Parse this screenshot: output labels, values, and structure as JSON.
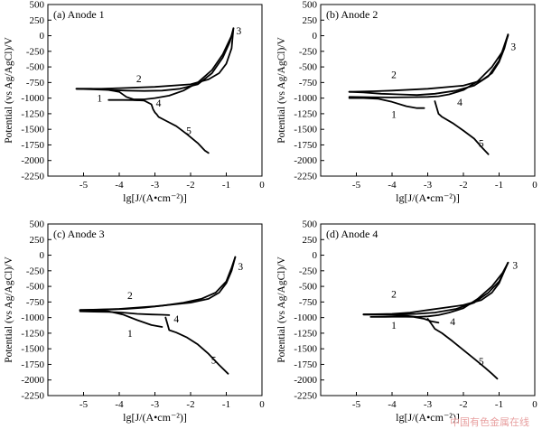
{
  "watermark": "中国有色金属在线",
  "chart_data": [
    {
      "type": "line",
      "title": "(a) Anode 1",
      "xlabel": "lg[J/(A•cm⁻²)]",
      "ylabel": "Potential (vs Ag/AgCl)/V",
      "xlim": [
        -6,
        0
      ],
      "ylim": [
        -2250,
        500
      ],
      "xticks": [
        -5,
        -4,
        -3,
        -2,
        -1,
        0
      ],
      "yticks": [
        500,
        250,
        0,
        -250,
        -500,
        -750,
        -1000,
        -1250,
        -1500,
        -1750,
        -2000,
        -2250
      ],
      "grid": false,
      "series": [
        {
          "name": "1",
          "x": [
            -4.3,
            -3.9,
            -3.6,
            -3.4
          ],
          "y": [
            -1030,
            -1030,
            -1032,
            -1035
          ]
        },
        {
          "name": "2",
          "x": [
            -5.2,
            -4.5,
            -4.0,
            -3.0,
            -2.0,
            -1.5,
            -1.2,
            -1.0,
            -0.85,
            -0.8
          ],
          "y": [
            -850,
            -850,
            -840,
            -820,
            -780,
            -700,
            -600,
            -450,
            -200,
            120
          ]
        },
        {
          "name": "3",
          "x": [
            -0.8,
            -0.9,
            -1.1,
            -1.4,
            -1.8,
            -2.3,
            -2.8,
            -3.3,
            -3.8,
            -4.2,
            -4.7,
            -5.2
          ],
          "y": [
            120,
            -100,
            -350,
            -600,
            -780,
            -850,
            -880,
            -885,
            -880,
            -870,
            -860,
            -850
          ]
        },
        {
          "name": "4",
          "x": [
            -5.2,
            -4.8,
            -4.4,
            -4.0,
            -3.8,
            -3.6,
            -3.3,
            -3.0,
            -2.6,
            -2.2,
            -1.8,
            -1.4,
            -1.1,
            -0.85
          ],
          "y": [
            -850,
            -850,
            -860,
            -900,
            -980,
            -1020,
            -1020,
            -1000,
            -960,
            -880,
            -750,
            -550,
            -300,
            0
          ]
        },
        {
          "name": "5",
          "x": [
            -3.6,
            -3.3,
            -3.1,
            -3.05,
            -3.0,
            -2.95,
            -2.9,
            -2.7,
            -2.4,
            -2.1,
            -1.8,
            -1.6,
            -1.5
          ],
          "y": [
            -1030,
            -1040,
            -1100,
            -1180,
            -1230,
            -1260,
            -1300,
            -1360,
            -1450,
            -1580,
            -1720,
            -1840,
            -1880
          ]
        }
      ],
      "curve_labels": [
        {
          "text": "1",
          "x": -4.55,
          "y": -1000
        },
        {
          "text": "2",
          "x": -3.45,
          "y": -690
        },
        {
          "text": "3",
          "x": -0.65,
          "y": 80
        },
        {
          "text": "4",
          "x": -2.9,
          "y": -1080
        },
        {
          "text": "5",
          "x": -2.05,
          "y": -1520
        }
      ]
    },
    {
      "type": "line",
      "title": "(b) Anode 2",
      "xlabel": "lg[J/(A•cm⁻²)]",
      "ylabel": "Potential (vs Ag/AgCl)/V",
      "xlim": [
        -6,
        0
      ],
      "ylim": [
        -2250,
        500
      ],
      "xticks": [
        -5,
        -4,
        -3,
        -2,
        -1,
        0
      ],
      "yticks": [
        500,
        250,
        0,
        -250,
        -500,
        -750,
        -1000,
        -1250,
        -1500,
        -1750,
        -2000,
        -2250
      ],
      "grid": false,
      "series": [
        {
          "name": "1",
          "x": [
            -5.2,
            -4.8,
            -4.4,
            -4.0,
            -3.6,
            -3.3,
            -3.1
          ],
          "y": [
            -1000,
            -1000,
            -1010,
            -1060,
            -1130,
            -1160,
            -1160
          ]
        },
        {
          "name": "2",
          "x": [
            -5.2,
            -4.5,
            -4.0,
            -3.0,
            -2.0,
            -1.5,
            -1.2,
            -1.0,
            -0.85,
            -0.75
          ],
          "y": [
            -900,
            -890,
            -880,
            -850,
            -800,
            -720,
            -600,
            -420,
            -200,
            20
          ]
        },
        {
          "name": "3",
          "x": [
            -0.75,
            -0.85,
            -1.0,
            -1.3,
            -1.7,
            -2.2,
            -2.8,
            -3.3,
            -3.8,
            -4.3,
            -4.8,
            -5.2
          ],
          "y": [
            20,
            -150,
            -400,
            -650,
            -800,
            -880,
            -930,
            -950,
            -940,
            -930,
            -910,
            -900
          ]
        },
        {
          "name": "4",
          "x": [
            -5.2,
            -4.6,
            -4.0,
            -3.5,
            -3.0,
            -2.7,
            -2.4,
            -2.0,
            -1.6,
            -1.2,
            -0.9,
            -0.75
          ],
          "y": [
            -980,
            -985,
            -990,
            -985,
            -980,
            -970,
            -940,
            -870,
            -730,
            -500,
            -250,
            0
          ]
        },
        {
          "name": "5",
          "x": [
            -2.8,
            -2.75,
            -2.7,
            -2.6,
            -2.3,
            -2.0,
            -1.7,
            -1.5,
            -1.3
          ],
          "y": [
            -1050,
            -1150,
            -1250,
            -1300,
            -1400,
            -1520,
            -1650,
            -1780,
            -1900
          ]
        }
      ],
      "curve_labels": [
        {
          "text": "1",
          "x": -3.95,
          "y": -1260
        },
        {
          "text": "2",
          "x": -3.95,
          "y": -620
        },
        {
          "text": "3",
          "x": -0.6,
          "y": -170
        },
        {
          "text": "4",
          "x": -2.1,
          "y": -1060
        },
        {
          "text": "5",
          "x": -1.5,
          "y": -1720
        }
      ]
    },
    {
      "type": "line",
      "title": "(c) Anode 3",
      "xlabel": "lg[J/(A•cm⁻²)]",
      "ylabel": "Potential (vs Ag/AgCl)/V",
      "xlim": [
        -6,
        0
      ],
      "ylim": [
        -2250,
        500
      ],
      "xticks": [
        -5,
        -4,
        -3,
        -2,
        -1,
        0
      ],
      "yticks": [
        500,
        250,
        0,
        -250,
        -500,
        -750,
        -1000,
        -1250,
        -1500,
        -1750,
        -2000,
        -2250
      ],
      "grid": false,
      "series": [
        {
          "name": "1",
          "x": [
            -5.1,
            -4.7,
            -4.3,
            -3.9,
            -3.5,
            -3.1,
            -2.8
          ],
          "y": [
            -880,
            -885,
            -900,
            -950,
            -1040,
            -1120,
            -1150
          ]
        },
        {
          "name": "2",
          "x": [
            -5.1,
            -4.5,
            -4.0,
            -3.0,
            -2.0,
            -1.5,
            -1.2,
            -1.0,
            -0.85,
            -0.75
          ],
          "y": [
            -880,
            -870,
            -860,
            -820,
            -760,
            -700,
            -600,
            -450,
            -250,
            -30
          ]
        },
        {
          "name": "3",
          "x": [
            -0.75,
            -0.85,
            -1.0,
            -1.3,
            -1.7,
            -2.2,
            -2.8,
            -3.3,
            -3.8,
            -4.3,
            -4.8,
            -5.1
          ],
          "y": [
            -30,
            -200,
            -420,
            -600,
            -700,
            -760,
            -810,
            -840,
            -860,
            -870,
            -875,
            -880
          ]
        },
        {
          "name": "4",
          "x": [
            -5.1,
            -4.7,
            -4.3,
            -3.9,
            -3.5,
            -3.1,
            -2.8,
            -2.6
          ],
          "y": [
            -900,
            -905,
            -910,
            -920,
            -940,
            -950,
            -955,
            -960
          ]
        },
        {
          "name": "5",
          "x": [
            -2.7,
            -2.65,
            -2.6,
            -2.4,
            -2.1,
            -1.8,
            -1.5,
            -1.2,
            -0.95
          ],
          "y": [
            -1000,
            -1100,
            -1200,
            -1240,
            -1320,
            -1430,
            -1580,
            -1760,
            -1900
          ]
        }
      ],
      "curve_labels": [
        {
          "text": "1",
          "x": -3.7,
          "y": -1250
        },
        {
          "text": "2",
          "x": -3.7,
          "y": -640
        },
        {
          "text": "3",
          "x": -0.6,
          "y": -180
        },
        {
          "text": "4",
          "x": -2.4,
          "y": -1020
        },
        {
          "text": "5",
          "x": -1.35,
          "y": -1680
        }
      ]
    },
    {
      "type": "line",
      "title": "(d) Anode 4",
      "xlabel": "lg[J/(A•cm⁻²)]",
      "ylabel": "Potential (vs Ag/AgCl)/V",
      "xlim": [
        -6,
        0
      ],
      "ylim": [
        -2250,
        500
      ],
      "xticks": [
        -5,
        -4,
        -3,
        -2,
        -1,
        0
      ],
      "yticks": [
        500,
        250,
        0,
        -250,
        -500,
        -750,
        -1000,
        -1250,
        -1500,
        -1750,
        -2000,
        -2250
      ],
      "grid": false,
      "series": [
        {
          "name": "1",
          "x": [
            -4.6,
            -4.2,
            -3.8,
            -3.4,
            -3.1,
            -2.9,
            -2.7
          ],
          "y": [
            -990,
            -990,
            -985,
            -990,
            -1020,
            -1060,
            -1080
          ]
        },
        {
          "name": "2",
          "x": [
            -4.8,
            -4.3,
            -4.0,
            -3.5,
            -3.0,
            -2.0,
            -1.5,
            -1.2,
            -1.0,
            -0.85,
            -0.75
          ],
          "y": [
            -950,
            -945,
            -940,
            -920,
            -880,
            -800,
            -720,
            -600,
            -450,
            -250,
            -120
          ]
        },
        {
          "name": "3",
          "x": [
            -0.75,
            -0.85,
            -1.0,
            -1.3,
            -1.7,
            -2.2,
            -2.8,
            -3.3,
            -3.8,
            -4.3,
            -4.8
          ],
          "y": [
            -120,
            -250,
            -420,
            -600,
            -760,
            -860,
            -920,
            -940,
            -950,
            -950,
            -950
          ]
        },
        {
          "name": "4",
          "x": [
            -4.8,
            -4.4,
            -4.0,
            -3.6,
            -3.3,
            -3.0,
            -2.7,
            -2.4,
            -2.0,
            -1.6,
            -1.2,
            -0.9,
            -0.75
          ],
          "y": [
            -950,
            -955,
            -960,
            -970,
            -990,
            -980,
            -960,
            -920,
            -850,
            -700,
            -500,
            -280,
            -120
          ]
        },
        {
          "name": "5",
          "x": [
            -3.0,
            -2.9,
            -2.8,
            -2.6,
            -2.3,
            -2.0,
            -1.7,
            -1.4,
            -1.2,
            -1.05
          ],
          "y": [
            -1020,
            -1100,
            -1180,
            -1250,
            -1380,
            -1520,
            -1660,
            -1800,
            -1900,
            -1980
          ]
        }
      ],
      "curve_labels": [
        {
          "text": "1",
          "x": -3.95,
          "y": -1120
        },
        {
          "text": "2",
          "x": -3.95,
          "y": -620
        },
        {
          "text": "3",
          "x": -0.55,
          "y": -160
        },
        {
          "text": "4",
          "x": -2.3,
          "y": -1060
        },
        {
          "text": "5",
          "x": -1.5,
          "y": -1700
        }
      ]
    }
  ]
}
